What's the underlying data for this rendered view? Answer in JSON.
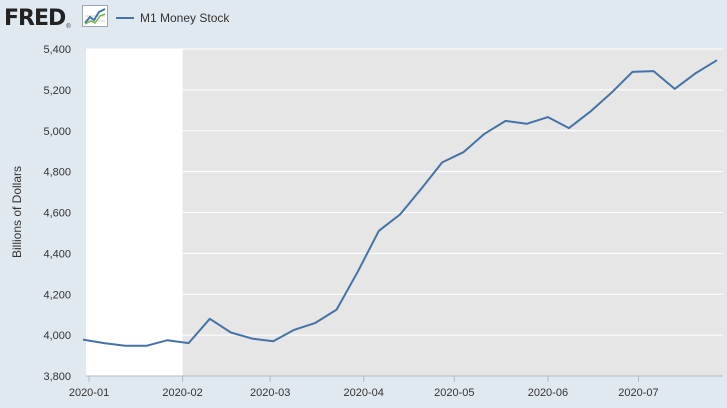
{
  "header": {
    "logo_text": "FRED",
    "logo_reg": "®",
    "legend_label": "M1 Money Stock"
  },
  "colors": {
    "background": "#e1e9f0",
    "plot_background": "#e6e6e6",
    "unshaded_region": "#ffffff",
    "line": "#4572a7",
    "gridline": "#ffffff"
  },
  "chart_data": {
    "type": "line",
    "title": "",
    "xlabel": "",
    "ylabel": "Billions of Dollars",
    "ylim": [
      3800,
      5400
    ],
    "yticks": [
      3800,
      4000,
      4200,
      4400,
      4600,
      4800,
      5000,
      5200,
      5400
    ],
    "ytick_labels": [
      "3,800",
      "4,000",
      "4,200",
      "4,400",
      "4,600",
      "4,800",
      "5,000",
      "5,200",
      "5,400"
    ],
    "xlim": [
      "2019-12-31",
      "2020-07-29"
    ],
    "xticks": [
      "2020-01-01",
      "2020-02-01",
      "2020-03-01",
      "2020-04-01",
      "2020-05-01",
      "2020-06-01",
      "2020-07-01"
    ],
    "xtick_labels": [
      "2020-01",
      "2020-02",
      "2020-03",
      "2020-04",
      "2020-05",
      "2020-06",
      "2020-07"
    ],
    "grid": true,
    "legend": "top-left",
    "shaded_region": {
      "from": "2020-02-01",
      "to": "2020-07-29",
      "label": ""
    },
    "series": [
      {
        "name": "M1 Money Stock",
        "color": "#4572a7",
        "x": [
          "2019-12-30",
          "2020-01-06",
          "2020-01-13",
          "2020-01-20",
          "2020-01-27",
          "2020-02-03",
          "2020-02-10",
          "2020-02-17",
          "2020-02-24",
          "2020-03-02",
          "2020-03-09",
          "2020-03-16",
          "2020-03-23",
          "2020-03-30",
          "2020-04-06",
          "2020-04-13",
          "2020-04-20",
          "2020-04-27",
          "2020-05-04",
          "2020-05-11",
          "2020-05-18",
          "2020-05-25",
          "2020-06-01",
          "2020-06-08",
          "2020-06-15",
          "2020-06-22",
          "2020-06-29",
          "2020-07-06",
          "2020-07-13",
          "2020-07-20",
          "2020-07-27"
        ],
        "values": [
          3978,
          3961,
          3948,
          3948,
          3975,
          3961,
          4080,
          4013,
          3983,
          3970,
          4026,
          4060,
          4125,
          4310,
          4510,
          4590,
          4715,
          4845,
          4895,
          4985,
          5048,
          5034,
          5067,
          5013,
          5093,
          5185,
          5288,
          5292,
          5205,
          5282,
          5345
        ]
      }
    ]
  }
}
